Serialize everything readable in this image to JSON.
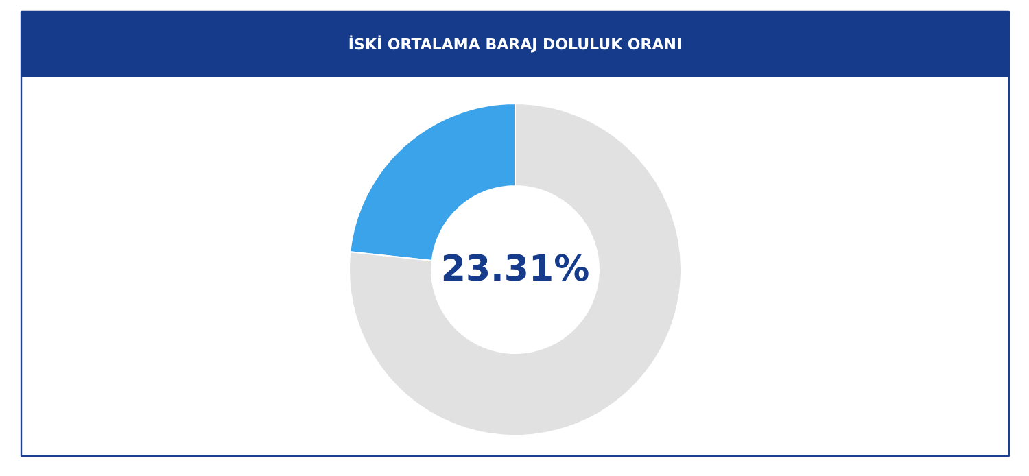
{
  "chart_data": {
    "type": "donut",
    "title": "İSKİ ORTALAMA BARAJ DOLULUK ORANI",
    "categories": [
      null,
      null
    ],
    "values": [
      23.31,
      76.69
    ],
    "colors": [
      "#3ba3ea",
      "#e1e1e1"
    ],
    "annotations": [
      "23.31%"
    ]
  }
}
